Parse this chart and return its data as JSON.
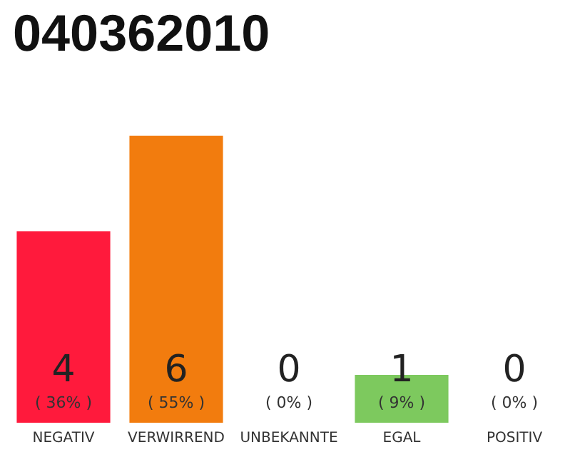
{
  "chart_data": {
    "type": "bar",
    "title": "040362010",
    "categories": [
      "NEGATIV",
      "VERWIRREND",
      "UNBEKANNTE",
      "EGAL",
      "POSITIV"
    ],
    "values": [
      4,
      6,
      0,
      1,
      0
    ],
    "colors": [
      "#ff1a3c",
      "#f27c0e",
      "#d0d0d0",
      "#7dc95e",
      "#d0d0d0"
    ],
    "value_labels": [
      "4\n( 36% )",
      "6\n( 55% )",
      "0\n( 0% )",
      "1\n( 9% )",
      "0\n( 0% )"
    ],
    "grid": false,
    "tick_labels": "x"
  }
}
